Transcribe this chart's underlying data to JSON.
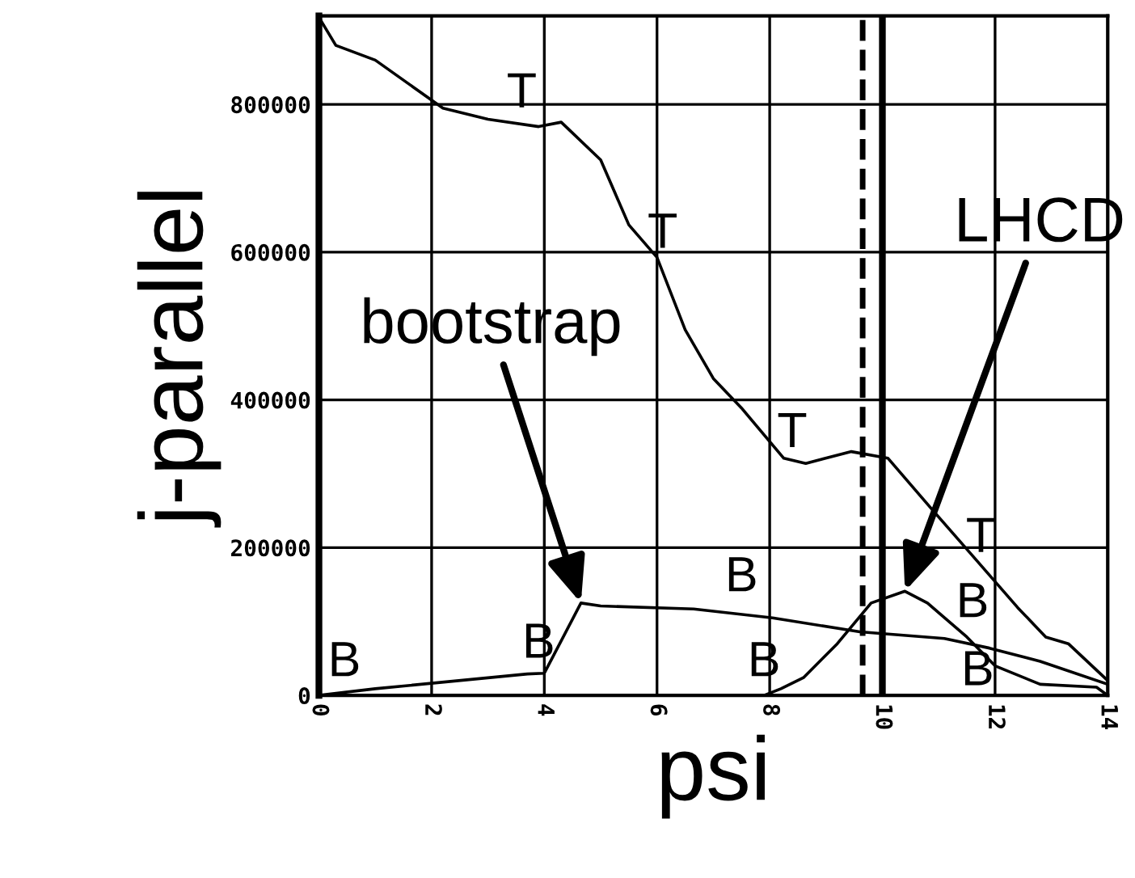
{
  "chart_data": {
    "type": "line",
    "xlabel": "psi",
    "ylabel": "j-parallel",
    "xlim": [
      0,
      14
    ],
    "xticks": [
      0,
      2,
      4,
      6,
      8,
      10,
      12,
      14
    ],
    "ylim": [
      0,
      920000
    ],
    "yticks": [
      0,
      200000,
      400000,
      600000,
      800000
    ],
    "grid": true,
    "marker": "none",
    "line_style": "solid",
    "series": [
      {
        "color": "#000000",
        "x": [
          0,
          0.3,
          1,
          2.2,
          3,
          3.9,
          4.3,
          5,
          5.5,
          6,
          6.5,
          7,
          7.5,
          8.25,
          8.64,
          9.45,
          10.1,
          10.9,
          11.6,
          12.4,
          12.9,
          13.3,
          14
        ],
        "values": [
          918000,
          880000,
          860000,
          795000,
          780000,
          770000,
          776000,
          725000,
          637000,
          593000,
          495000,
          429000,
          389000,
          321000,
          314000,
          330000,
          321000,
          250000,
          189000,
          119000,
          79000,
          70000,
          20000
        ]
      },
      {
        "color": "#000000",
        "x": [
          0,
          1,
          3.7,
          4,
          4.65,
          5,
          6.65,
          8.05,
          9.6,
          11.1,
          11.9,
          12.8,
          14
        ],
        "values": [
          0,
          9000,
          29000,
          30000,
          125000,
          121000,
          117000,
          105000,
          86000,
          77000,
          64000,
          46000,
          15000
        ]
      },
      {
        "color": "#000000",
        "x": [
          0,
          7.9,
          8.2,
          8.6,
          9.2,
          9.8,
          10.4,
          10.8,
          11.5,
          12.0,
          12.8,
          13.8,
          14
        ],
        "values": [
          0,
          0,
          9000,
          24000,
          70000,
          125000,
          141000,
          125000,
          79000,
          40000,
          15000,
          11000,
          0
        ]
      }
    ],
    "ref_lines": [
      {
        "axis": "x",
        "value": 9.65,
        "color": "#000000",
        "line_style": "dashed"
      },
      {
        "axis": "x",
        "value": 10,
        "color": "#000000",
        "line_style": "solid"
      }
    ],
    "annotations": [
      {
        "text": "T",
        "x": 3.6,
        "y": 770000
      },
      {
        "text": "T",
        "x": 6.1,
        "y": 580000
      },
      {
        "text": "T",
        "x": 8.4,
        "y": 310000
      },
      {
        "text": "T",
        "x": 11.75,
        "y": 168000
      },
      {
        "text": "B",
        "x": 0,
        "y": 0
      },
      {
        "text": "B",
        "x": 3.9,
        "y": 25000
      },
      {
        "text": "B",
        "x": 7.5,
        "y": 115000
      },
      {
        "text": "B",
        "x": 7.9,
        "y": 0
      },
      {
        "text": "B",
        "x": 11.6,
        "y": 80000
      },
      "B",
      {
        "text": "bootstrap",
        "x": 4.65,
        "y": 125000
      },
      {
        "text": "LHCD",
        "x": 10.4,
        "y": 141000
      }
    ]
  }
}
